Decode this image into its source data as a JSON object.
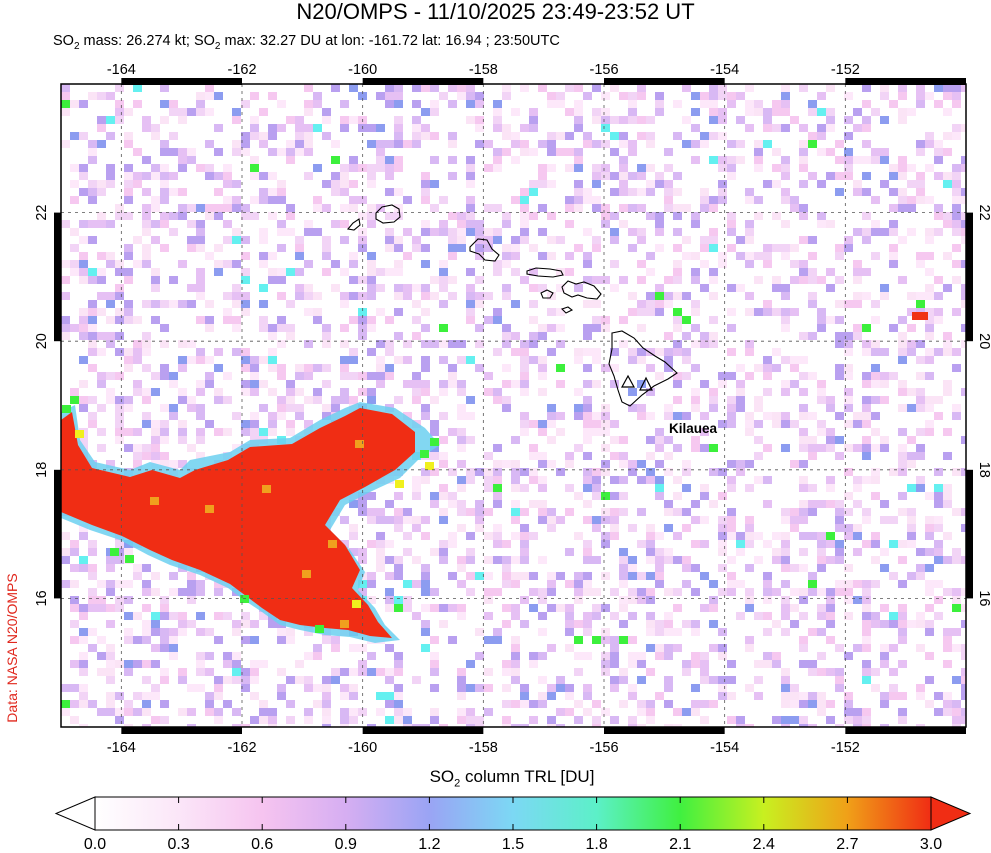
{
  "title": "N20/OMPS - 11/10/2025 23:49-23:52 UT",
  "subtitle": {
    "mass_prefix": "SO",
    "mass_sub": "2",
    "mass_text": " mass: 26.274 kt; SO",
    "max_sub": "2",
    "max_text": " max: 32.27 DU at lon: -161.72 lat: 16.94 ; 23:50UTC"
  },
  "credit": "Data: NASA N20/OMPS",
  "map": {
    "lon_ticks": [
      "-164",
      "-162",
      "-160",
      "-158",
      "-156",
      "-154",
      "-152"
    ],
    "lon_values": [
      -164,
      -162,
      -160,
      -158,
      -156,
      -154,
      -152
    ],
    "lat_ticks": [
      "22",
      "20",
      "18",
      "16"
    ],
    "lat_values": [
      22,
      20,
      18,
      16
    ],
    "lon_range": [
      -165,
      -150
    ],
    "lat_range": [
      14,
      24
    ],
    "volcano_label": "Kilauea",
    "grid": true
  },
  "colorbar": {
    "title_prefix": "SO",
    "title_sub": "2",
    "title_suffix": " column TRL [DU]",
    "ticks": [
      "0.0",
      "0.3",
      "0.6",
      "0.9",
      "1.2",
      "1.5",
      "1.8",
      "2.1",
      "2.4",
      "2.7",
      "3.0"
    ],
    "range": [
      0,
      3
    ],
    "colors": {
      "plume": "#f02d14",
      "low": "#ffffff",
      "pink": "#f6c8f0",
      "violet": "#b9a0f0",
      "blue": "#8c9cf0",
      "cyan": "#64f0f0",
      "green": "#3cf03c",
      "yellow": "#f0f01e",
      "orange": "#f0a01e",
      "red": "#f03214"
    }
  }
}
